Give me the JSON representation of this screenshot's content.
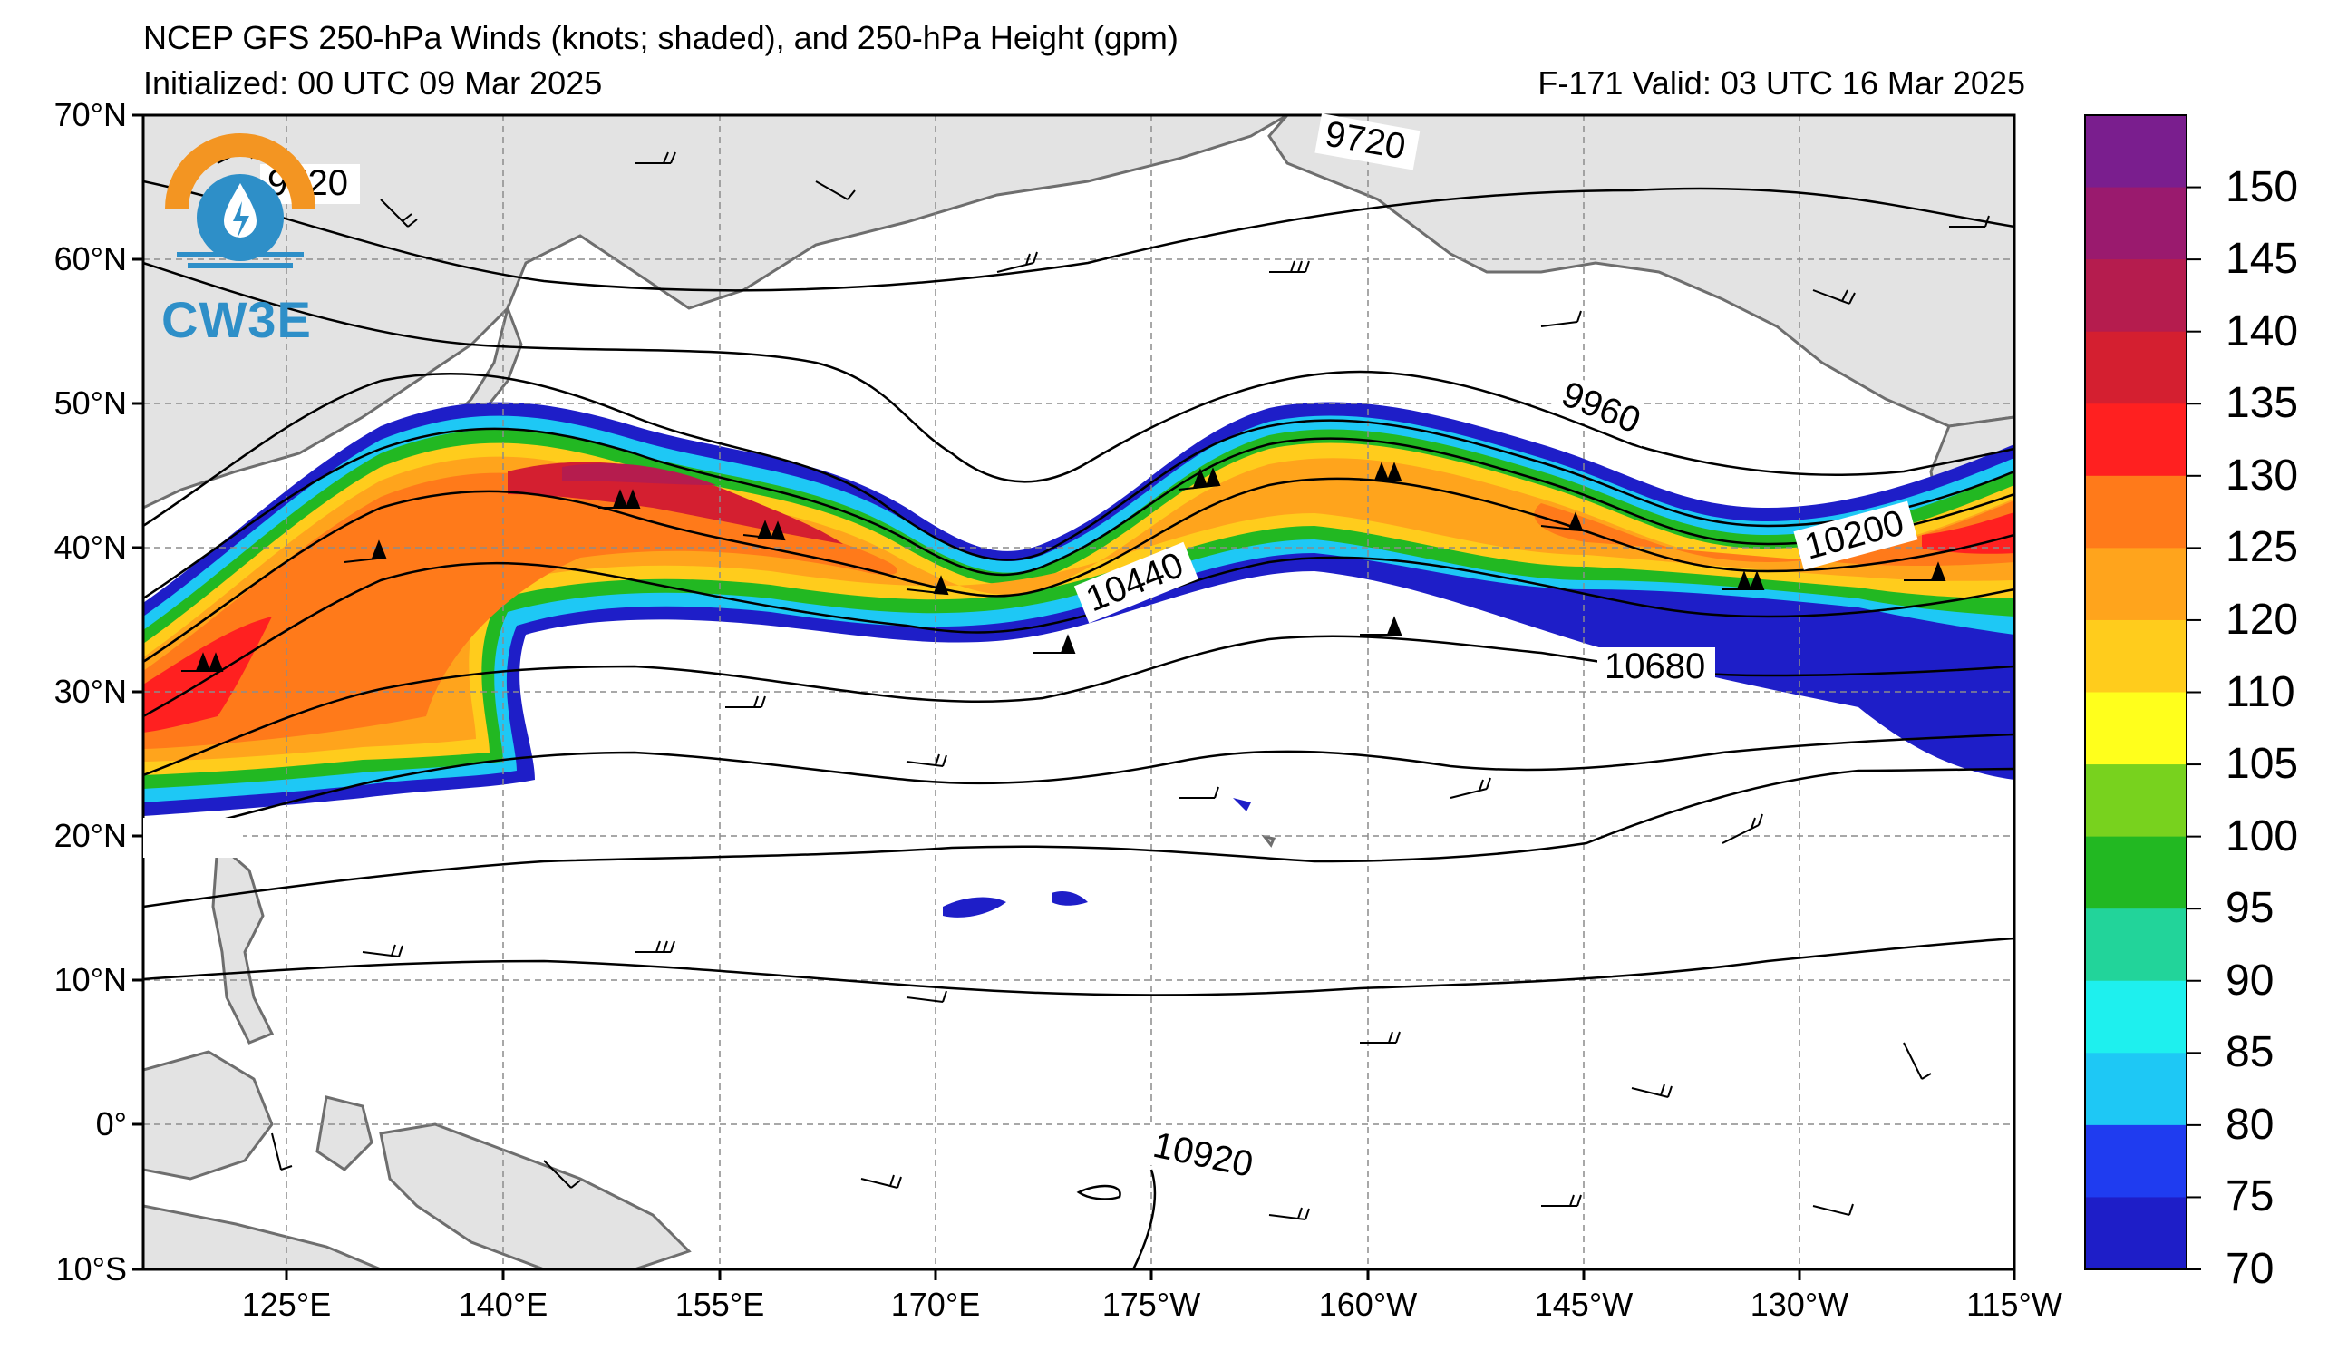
{
  "title_line1": "NCEP GFS 250-hPa Winds (knots; shaded), and 250-hPa Height (gpm)",
  "title_line2_left": "Initialized: 00 UTC 09 Mar 2025",
  "title_line2_right": "F-171  Valid: 03 UTC 16 Mar 2025",
  "logo_text": "CW3E",
  "latitude_labels": [
    "70°N",
    "60°N",
    "50°N",
    "40°N",
    "30°N",
    "20°N",
    "10°N",
    "0°",
    "10°S"
  ],
  "longitude_labels": [
    "125°E",
    "140°E",
    "155°E",
    "170°E",
    "175°W",
    "160°W",
    "145°W",
    "130°W",
    "115°W"
  ],
  "contour_labels": [
    "9720",
    "9720",
    "9960",
    "10200",
    "10440",
    "10680",
    "10920",
    "10920"
  ],
  "colorbar": {
    "ticks": [
      "150",
      "145",
      "140",
      "135",
      "130",
      "125",
      "120",
      "110",
      "105",
      "100",
      "95",
      "90",
      "85",
      "80",
      "75",
      "70"
    ],
    "colors": [
      "#7a1e8e",
      "#9a1a6e",
      "#b51c4e",
      "#d41f30",
      "#ff2020",
      "#ff7a1a",
      "#ffa41c",
      "#ffcc1c",
      "#ffff1c",
      "#78d21e",
      "#22b822",
      "#22d49a",
      "#1ef0ee",
      "#1ec8f5",
      "#1f3cf0",
      "#1e1ec8"
    ]
  },
  "colors": {
    "land": "#e3e3e3",
    "coast": "#6e6e6e",
    "grid": "#8c8c8c",
    "logo_orange": "#f39522",
    "logo_blue": "#2e8fc8"
  }
}
